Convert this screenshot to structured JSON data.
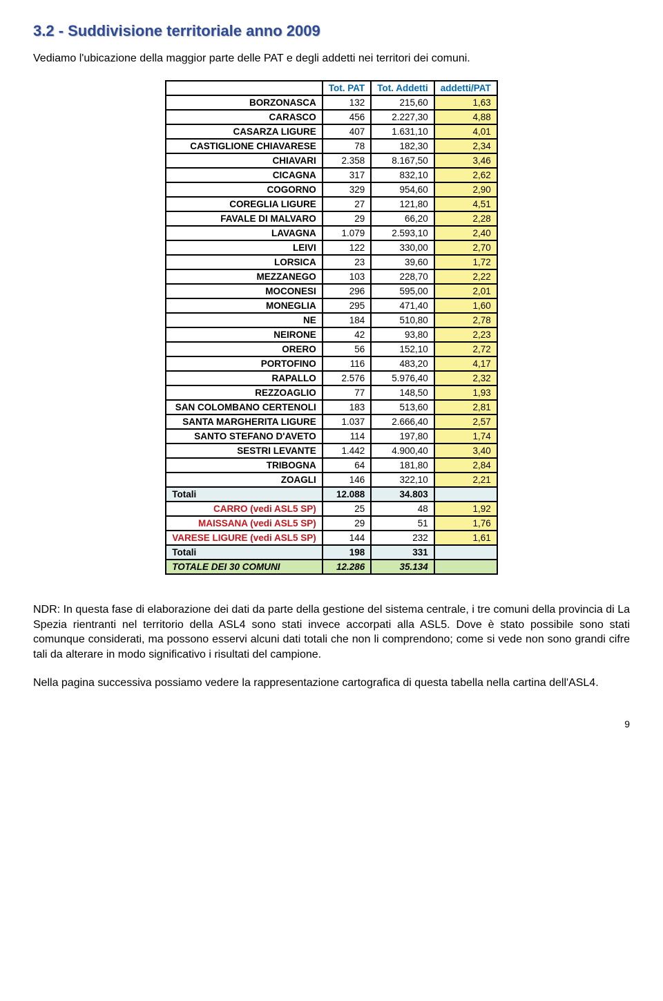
{
  "heading": "3.2 - Suddivisione territoriale anno 2009",
  "intro": "Vediamo l'ubicazione della maggior parte delle PAT e degli addetti nei territori dei comuni.",
  "headers": {
    "c1": "",
    "c2": "Tot. PAT",
    "c3": "Tot. Addetti",
    "c4": "addetti/PAT"
  },
  "ratio_bg": "#fbf29c",
  "header_accent_color": "#0068b3",
  "rows": [
    {
      "name": "BORZONASCA",
      "pat": "132",
      "add": "215,60",
      "ratio": "1,63"
    },
    {
      "name": "CARASCO",
      "pat": "456",
      "add": "2.227,30",
      "ratio": "4,88"
    },
    {
      "name": "CASARZA LIGURE",
      "pat": "407",
      "add": "1.631,10",
      "ratio": "4,01"
    },
    {
      "name": "CASTIGLIONE CHIAVARESE",
      "pat": "78",
      "add": "182,30",
      "ratio": "2,34"
    },
    {
      "name": "CHIAVARI",
      "pat": "2.358",
      "add": "8.167,50",
      "ratio": "3,46"
    },
    {
      "name": "CICAGNA",
      "pat": "317",
      "add": "832,10",
      "ratio": "2,62"
    },
    {
      "name": "COGORNO",
      "pat": "329",
      "add": "954,60",
      "ratio": "2,90"
    },
    {
      "name": "COREGLIA LIGURE",
      "pat": "27",
      "add": "121,80",
      "ratio": "4,51"
    },
    {
      "name": "FAVALE DI MALVARO",
      "pat": "29",
      "add": "66,20",
      "ratio": "2,28"
    },
    {
      "name": "LAVAGNA",
      "pat": "1.079",
      "add": "2.593,10",
      "ratio": "2,40"
    },
    {
      "name": "LEIVI",
      "pat": "122",
      "add": "330,00",
      "ratio": "2,70"
    },
    {
      "name": "LORSICA",
      "pat": "23",
      "add": "39,60",
      "ratio": "1,72"
    },
    {
      "name": "MEZZANEGO",
      "pat": "103",
      "add": "228,70",
      "ratio": "2,22"
    },
    {
      "name": "MOCONESI",
      "pat": "296",
      "add": "595,00",
      "ratio": "2,01"
    },
    {
      "name": "MONEGLIA",
      "pat": "295",
      "add": "471,40",
      "ratio": "1,60"
    },
    {
      "name": "NE",
      "pat": "184",
      "add": "510,80",
      "ratio": "2,78"
    },
    {
      "name": "NEIRONE",
      "pat": "42",
      "add": "93,80",
      "ratio": "2,23"
    },
    {
      "name": "ORERO",
      "pat": "56",
      "add": "152,10",
      "ratio": "2,72"
    },
    {
      "name": "PORTOFINO",
      "pat": "116",
      "add": "483,20",
      "ratio": "4,17"
    },
    {
      "name": "RAPALLO",
      "pat": "2.576",
      "add": "5.976,40",
      "ratio": "2,32"
    },
    {
      "name": "REZZOAGLIO",
      "pat": "77",
      "add": "148,50",
      "ratio": "1,93"
    },
    {
      "name": "SAN COLOMBANO CERTENOLI",
      "pat": "183",
      "add": "513,60",
      "ratio": "2,81"
    },
    {
      "name": "SANTA MARGHERITA LIGURE",
      "pat": "1.037",
      "add": "2.666,40",
      "ratio": "2,57"
    },
    {
      "name": "SANTO STEFANO D'AVETO",
      "pat": "114",
      "add": "197,80",
      "ratio": "1,74"
    },
    {
      "name": "SESTRI LEVANTE",
      "pat": "1.442",
      "add": "4.900,40",
      "ratio": "3,40"
    },
    {
      "name": "TRIBOGNA",
      "pat": "64",
      "add": "181,80",
      "ratio": "2,84"
    },
    {
      "name": "ZOAGLI",
      "pat": "146",
      "add": "322,10",
      "ratio": "2,21"
    }
  ],
  "totali1": {
    "label": "Totali",
    "pat": "12.088",
    "add": "34.803",
    "ratio": ""
  },
  "rows2": [
    {
      "name": "CARRO   (vedi ASL5 SP)",
      "pat": "25",
      "add": "48",
      "ratio": "1,92"
    },
    {
      "name": "MAISSANA   (vedi ASL5 SP)",
      "pat": "29",
      "add": "51",
      "ratio": "1,76"
    },
    {
      "name": "VARESE LIGURE   (vedi ASL5 SP)",
      "pat": "144",
      "add": "232",
      "ratio": "1,61"
    }
  ],
  "totali2": {
    "label": "Totali",
    "pat": "198",
    "add": "331",
    "ratio": ""
  },
  "grand": {
    "label": "TOTALE DEI 30 COMUNI",
    "pat": "12.286",
    "add": "35.134",
    "ratio": ""
  },
  "ndr": "NDR: In questa fase di elaborazione dei dati da parte della gestione del sistema centrale, i tre comuni della provincia di La Spezia rientranti nel territorio della ASL4 sono stati invece accorpati alla ASL5. Dove è stato possibile sono stati comunque considerati, ma possono esservi alcuni dati totali che non li comprendono; come si vede non sono grandi cifre tali da alterare in modo significativo i risultati del campione.",
  "next": "Nella pagina successiva possiamo vedere la rappresentazione cartografica di questa tabella nella cartina dell'ASL4.",
  "pagenum": "9"
}
